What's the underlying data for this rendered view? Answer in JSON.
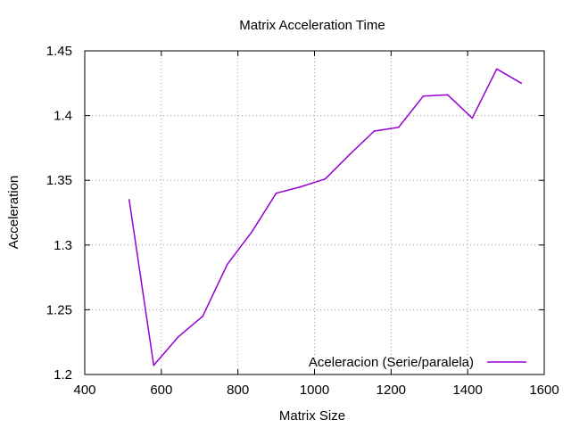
{
  "chart_data": {
    "type": "line",
    "title": "Matrix Acceleration Time",
    "xlabel": "Matrix Size",
    "ylabel": "Acceleration",
    "xlim": [
      400,
      1600
    ],
    "ylim": [
      1.2,
      1.45
    ],
    "xticks": [
      400,
      600,
      800,
      1000,
      1200,
      1400,
      1600
    ],
    "yticks": [
      1.2,
      1.25,
      1.3,
      1.35,
      1.4,
      1.45
    ],
    "xtick_labels": [
      "400",
      "600",
      "800",
      "1000",
      "1200",
      "1400",
      "1600"
    ],
    "ytick_labels": [
      "1.2",
      "1.25",
      "1.3",
      "1.35",
      "1.4",
      "1.45"
    ],
    "grid": true,
    "legend_position": "bottom-right",
    "series": [
      {
        "name": "Aceleracion (Serie/paralela)",
        "color": "#9400d3",
        "x": [
          516,
          580,
          644,
          708,
          772,
          836,
          900,
          964,
          1028,
          1092,
          1156,
          1220,
          1284,
          1348,
          1412,
          1476,
          1540
        ],
        "y": [
          1.335,
          1.207,
          1.229,
          1.245,
          1.285,
          1.31,
          1.34,
          1.345,
          1.351,
          1.37,
          1.388,
          1.391,
          1.415,
          1.416,
          1.398,
          1.436,
          1.425
        ]
      }
    ]
  }
}
